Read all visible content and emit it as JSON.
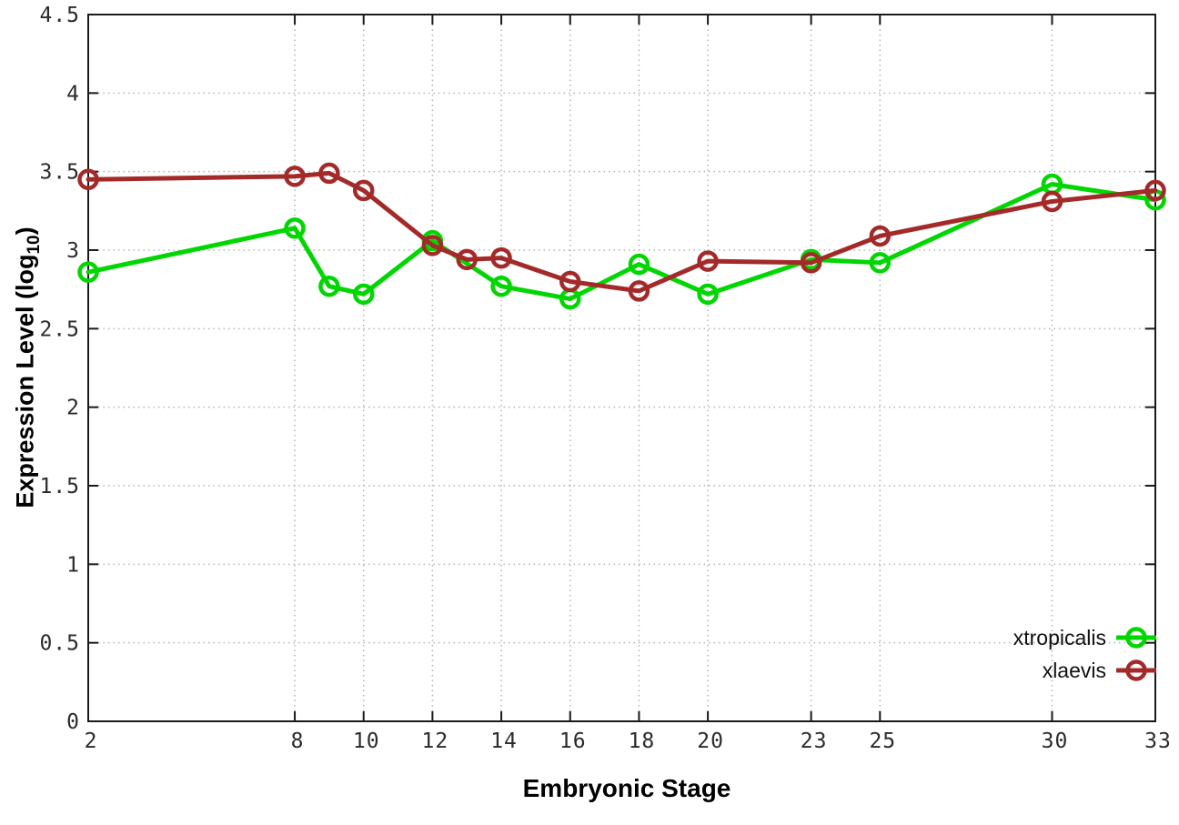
{
  "labels": {
    "xlabel": "Embryonic Stage",
    "ylabel_main": "Expression Level (log",
    "ylabel_sub": "10",
    "ylabel_close": ")"
  },
  "chart_data": {
    "type": "line",
    "title": "",
    "xlabel": "Embryonic Stage",
    "ylabel": "Expression Level (log10)",
    "xlim": [
      2,
      33
    ],
    "ylim": [
      0,
      4.5
    ],
    "grid": true,
    "legend_position": "bottom-right",
    "x_tick_values": [
      2,
      8,
      10,
      12,
      14,
      16,
      18,
      20,
      23,
      25,
      30,
      33
    ],
    "x_tick_labels": [
      "2",
      "8",
      "10",
      "12",
      "14",
      "16",
      "18",
      "20",
      "23",
      "25",
      "30",
      "33"
    ],
    "y_tick_values": [
      0,
      0.5,
      1,
      1.5,
      2,
      2.5,
      3,
      3.5,
      4,
      4.5
    ],
    "y_tick_labels": [
      "0",
      "0.5",
      "1",
      "1.5",
      "2",
      "2.5",
      "3",
      "3.5",
      "4",
      "4.5"
    ],
    "style": {
      "axis_color": "#1a1a1a",
      "grid_color": "#b3b3b3",
      "tick_label_color": "#2b2b2b",
      "background": "#ffffff",
      "line_width": 5,
      "marker_radius": 9.5,
      "marker_stroke": 4.5
    },
    "series": [
      {
        "name": "xtropicalis",
        "color": "#00d600",
        "marker": "open-circle",
        "x": [
          2,
          8,
          9,
          10,
          12,
          14,
          16,
          18,
          20,
          23,
          25,
          30,
          33
        ],
        "y": [
          2.86,
          3.14,
          2.77,
          2.72,
          3.06,
          2.77,
          2.69,
          2.91,
          2.72,
          2.94,
          2.92,
          3.42,
          3.32
        ]
      },
      {
        "name": "xlaevis",
        "color": "#a42a2a",
        "marker": "open-circle",
        "x": [
          2,
          8,
          9,
          10,
          12,
          13,
          14,
          16,
          18,
          20,
          23,
          25,
          30,
          33
        ],
        "y": [
          3.45,
          3.47,
          3.49,
          3.38,
          3.03,
          2.94,
          2.95,
          2.8,
          2.74,
          2.93,
          2.92,
          3.09,
          3.31,
          3.38
        ]
      }
    ]
  }
}
